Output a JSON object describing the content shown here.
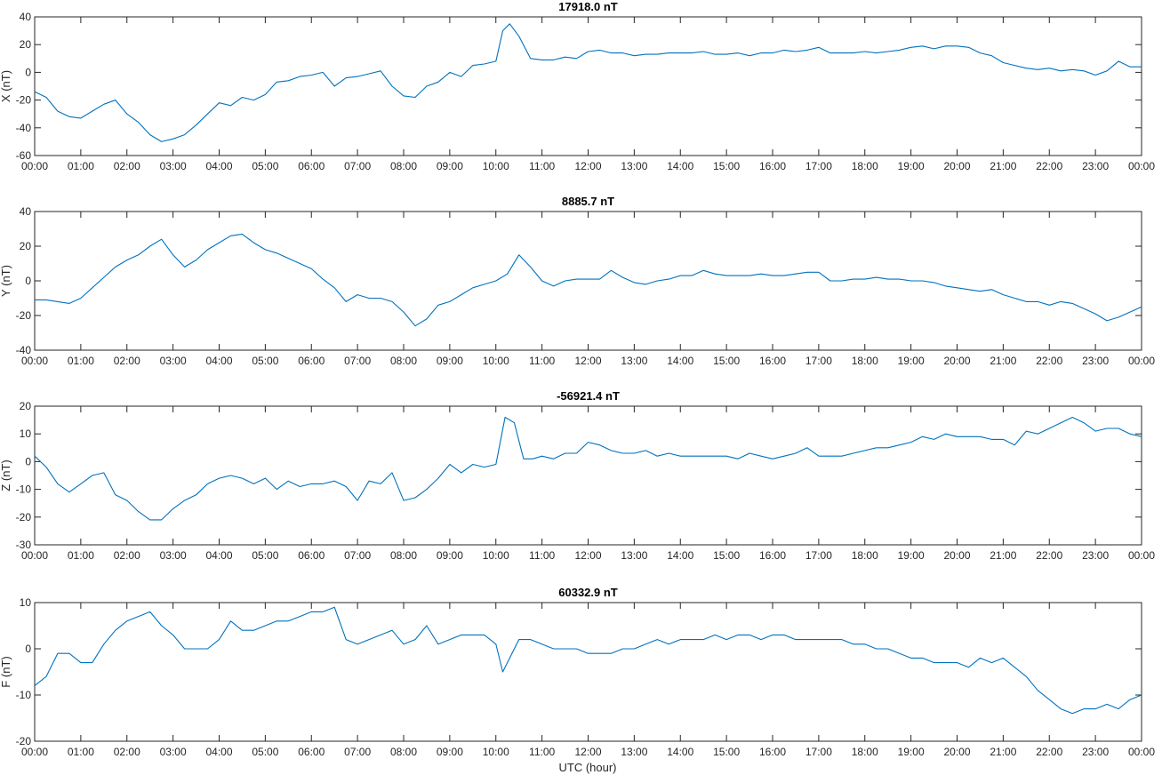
{
  "figure": {
    "xlabel": "UTC (hour)",
    "line_color": "#0072BD",
    "axis_color": "#262626"
  },
  "chart_data": [
    {
      "type": "line",
      "title": "17918.0 nT",
      "ylabel": "X (nT)",
      "xlabel": "",
      "xlim": [
        0,
        24
      ],
      "ylim": [
        -60,
        40
      ],
      "yticks": [
        -60,
        -40,
        -20,
        0,
        20,
        40
      ],
      "xticks": [
        "00:00",
        "01:00",
        "02:00",
        "03:00",
        "04:00",
        "05:00",
        "06:00",
        "07:00",
        "08:00",
        "09:00",
        "10:00",
        "11:00",
        "12:00",
        "13:00",
        "14:00",
        "15:00",
        "16:00",
        "17:00",
        "18:00",
        "19:00",
        "20:00",
        "21:00",
        "22:00",
        "23:00",
        "00:00"
      ],
      "grid": false,
      "series": [
        {
          "x": [
            0,
            0.25,
            0.5,
            0.75,
            1.0,
            1.25,
            1.5,
            1.75,
            2.0,
            2.25,
            2.5,
            2.75,
            3.0,
            3.25,
            3.5,
            3.75,
            4.0,
            4.25,
            4.5,
            4.75,
            5.0,
            5.25,
            5.5,
            5.75,
            6.0,
            6.25,
            6.5,
            6.75,
            7.0,
            7.25,
            7.5,
            7.75,
            8.0,
            8.25,
            8.5,
            8.75,
            9.0,
            9.25,
            9.5,
            9.75,
            10.0,
            10.15,
            10.3,
            10.5,
            10.75,
            11.0,
            11.25,
            11.5,
            11.75,
            12.0,
            12.25,
            12.5,
            12.75,
            13.0,
            13.25,
            13.5,
            13.75,
            14.0,
            14.25,
            14.5,
            14.75,
            15.0,
            15.25,
            15.5,
            15.75,
            16.0,
            16.25,
            16.5,
            16.75,
            17.0,
            17.25,
            17.5,
            17.75,
            18.0,
            18.25,
            18.5,
            18.75,
            19.0,
            19.25,
            19.5,
            19.75,
            20.0,
            20.25,
            20.5,
            20.75,
            21.0,
            21.25,
            21.5,
            21.75,
            22.0,
            22.25,
            22.5,
            22.75,
            23.0,
            23.25,
            23.5,
            23.75,
            24.0
          ],
          "y": [
            -14,
            -18,
            -28,
            -32,
            -33,
            -28,
            -23,
            -20,
            -30,
            -36,
            -45,
            -50,
            -48,
            -45,
            -38,
            -30,
            -22,
            -24,
            -18,
            -20,
            -16,
            -7,
            -6,
            -3,
            -2,
            0,
            -10,
            -4,
            -3,
            -1,
            1,
            -10,
            -17,
            -18,
            -10,
            -7,
            0,
            -3,
            5,
            6,
            8,
            30,
            35,
            26,
            10,
            9,
            9,
            11,
            10,
            15,
            16,
            14,
            14,
            12,
            13,
            13,
            14,
            14,
            14,
            15,
            13,
            13,
            14,
            12,
            14,
            14,
            16,
            15,
            16,
            18,
            14,
            14,
            14,
            15,
            14,
            15,
            16,
            18,
            19,
            17,
            19,
            19,
            18,
            14,
            12,
            7,
            5,
            3,
            2,
            3,
            1,
            2,
            1,
            -2,
            1,
            8,
            4,
            4
          ]
        }
      ]
    },
    {
      "type": "line",
      "title": "8885.7 nT",
      "ylabel": "Y (nT)",
      "xlabel": "",
      "xlim": [
        0,
        24
      ],
      "ylim": [
        -40,
        40
      ],
      "yticks": [
        -40,
        -20,
        0,
        20,
        40
      ],
      "xticks": [
        "00:00",
        "01:00",
        "02:00",
        "03:00",
        "04:00",
        "05:00",
        "06:00",
        "07:00",
        "08:00",
        "09:00",
        "10:00",
        "11:00",
        "12:00",
        "13:00",
        "14:00",
        "15:00",
        "16:00",
        "17:00",
        "18:00",
        "19:00",
        "20:00",
        "21:00",
        "22:00",
        "23:00",
        "00:00"
      ],
      "grid": false,
      "series": [
        {
          "x": [
            0,
            0.25,
            0.5,
            0.75,
            1.0,
            1.25,
            1.5,
            1.75,
            2.0,
            2.25,
            2.5,
            2.75,
            3.0,
            3.25,
            3.5,
            3.75,
            4.0,
            4.25,
            4.5,
            4.75,
            5.0,
            5.25,
            5.5,
            5.75,
            6.0,
            6.25,
            6.5,
            6.75,
            7.0,
            7.25,
            7.5,
            7.75,
            8.0,
            8.25,
            8.5,
            8.75,
            9.0,
            9.25,
            9.5,
            9.75,
            10.0,
            10.25,
            10.5,
            10.75,
            11.0,
            11.25,
            11.5,
            11.75,
            12.0,
            12.25,
            12.5,
            12.75,
            13.0,
            13.25,
            13.5,
            13.75,
            14.0,
            14.25,
            14.5,
            14.75,
            15.0,
            15.25,
            15.5,
            15.75,
            16.0,
            16.25,
            16.5,
            16.75,
            17.0,
            17.25,
            17.5,
            17.75,
            18.0,
            18.25,
            18.5,
            18.75,
            19.0,
            19.25,
            19.5,
            19.75,
            20.0,
            20.25,
            20.5,
            20.75,
            21.0,
            21.25,
            21.5,
            21.75,
            22.0,
            22.25,
            22.5,
            22.75,
            23.0,
            23.25,
            23.5,
            23.75,
            24.0
          ],
          "y": [
            -11,
            -11,
            -12,
            -13,
            -10,
            -4,
            2,
            8,
            12,
            15,
            20,
            24,
            15,
            8,
            12,
            18,
            22,
            26,
            27,
            22,
            18,
            16,
            13,
            10,
            7,
            1,
            -4,
            -12,
            -8,
            -10,
            -10,
            -12,
            -18,
            -26,
            -22,
            -14,
            -12,
            -8,
            -4,
            -2,
            0,
            4,
            15,
            8,
            0,
            -3,
            0,
            1,
            1,
            1,
            6,
            2,
            -1,
            -2,
            0,
            1,
            3,
            3,
            6,
            4,
            3,
            3,
            3,
            4,
            3,
            3,
            4,
            5,
            5,
            0,
            0,
            1,
            1,
            2,
            1,
            1,
            0,
            0,
            -1,
            -3,
            -4,
            -5,
            -6,
            -5,
            -8,
            -10,
            -12,
            -12,
            -14,
            -12,
            -13,
            -16,
            -19,
            -23,
            -21,
            -18,
            -15
          ]
        }
      ]
    },
    {
      "type": "line",
      "title": "-56921.4 nT",
      "ylabel": "Z (nT)",
      "xlabel": "",
      "xlim": [
        0,
        24
      ],
      "ylim": [
        -30,
        20
      ],
      "yticks": [
        -30,
        -20,
        -10,
        0,
        10,
        20
      ],
      "xticks": [
        "00:00",
        "01:00",
        "02:00",
        "03:00",
        "04:00",
        "05:00",
        "06:00",
        "07:00",
        "08:00",
        "09:00",
        "10:00",
        "11:00",
        "12:00",
        "13:00",
        "14:00",
        "15:00",
        "16:00",
        "17:00",
        "18:00",
        "19:00",
        "20:00",
        "21:00",
        "22:00",
        "23:00",
        "00:00"
      ],
      "grid": false,
      "series": [
        {
          "x": [
            0,
            0.25,
            0.5,
            0.75,
            1.0,
            1.25,
            1.5,
            1.75,
            2.0,
            2.25,
            2.5,
            2.75,
            3.0,
            3.25,
            3.5,
            3.75,
            4.0,
            4.25,
            4.5,
            4.75,
            5.0,
            5.25,
            5.5,
            5.75,
            6.0,
            6.25,
            6.5,
            6.75,
            7.0,
            7.25,
            7.5,
            7.75,
            8.0,
            8.25,
            8.5,
            8.75,
            9.0,
            9.25,
            9.5,
            9.75,
            10.0,
            10.2,
            10.4,
            10.6,
            10.8,
            11.0,
            11.25,
            11.5,
            11.75,
            12.0,
            12.25,
            12.5,
            12.75,
            13.0,
            13.25,
            13.5,
            13.75,
            14.0,
            14.25,
            14.5,
            14.75,
            15.0,
            15.25,
            15.5,
            15.75,
            16.0,
            16.25,
            16.5,
            16.75,
            17.0,
            17.25,
            17.5,
            17.75,
            18.0,
            18.25,
            18.5,
            18.75,
            19.0,
            19.25,
            19.5,
            19.75,
            20.0,
            20.25,
            20.5,
            20.75,
            21.0,
            21.25,
            21.5,
            21.75,
            22.0,
            22.25,
            22.5,
            22.75,
            23.0,
            23.25,
            23.5,
            23.75,
            24.0
          ],
          "y": [
            2,
            -2,
            -8,
            -11,
            -8,
            -5,
            -4,
            -12,
            -14,
            -18,
            -21,
            -21,
            -17,
            -14,
            -12,
            -8,
            -6,
            -5,
            -6,
            -8,
            -6,
            -10,
            -7,
            -9,
            -8,
            -8,
            -7,
            -9,
            -14,
            -7,
            -8,
            -4,
            -14,
            -13,
            -10,
            -6,
            -1,
            -4,
            -1,
            -2,
            -1,
            16,
            14,
            1,
            1,
            2,
            1,
            3,
            3,
            7,
            6,
            4,
            3,
            3,
            4,
            2,
            3,
            2,
            2,
            2,
            2,
            2,
            1,
            3,
            2,
            1,
            2,
            3,
            5,
            2,
            2,
            2,
            3,
            4,
            5,
            5,
            6,
            7,
            9,
            8,
            10,
            9,
            9,
            9,
            8,
            8,
            6,
            11,
            10,
            12,
            14,
            16,
            14,
            11,
            12,
            12,
            10,
            9
          ]
        }
      ]
    },
    {
      "type": "line",
      "title": "60332.9 nT",
      "ylabel": "F (nT)",
      "xlabel": "UTC (hour)",
      "xlim": [
        0,
        24
      ],
      "ylim": [
        -20,
        10
      ],
      "yticks": [
        -20,
        -10,
        0,
        10
      ],
      "xticks": [
        "00:00",
        "01:00",
        "02:00",
        "03:00",
        "04:00",
        "05:00",
        "06:00",
        "07:00",
        "08:00",
        "09:00",
        "10:00",
        "11:00",
        "12:00",
        "13:00",
        "14:00",
        "15:00",
        "16:00",
        "17:00",
        "18:00",
        "19:00",
        "20:00",
        "21:00",
        "22:00",
        "23:00",
        "00:00"
      ],
      "grid": false,
      "series": [
        {
          "x": [
            0,
            0.25,
            0.5,
            0.75,
            1.0,
            1.25,
            1.5,
            1.75,
            2.0,
            2.25,
            2.5,
            2.75,
            3.0,
            3.25,
            3.5,
            3.75,
            4.0,
            4.25,
            4.5,
            4.75,
            5.0,
            5.25,
            5.5,
            5.75,
            6.0,
            6.25,
            6.5,
            6.75,
            7.0,
            7.25,
            7.5,
            7.75,
            8.0,
            8.25,
            8.5,
            8.75,
            9.0,
            9.25,
            9.5,
            9.75,
            10.0,
            10.15,
            10.3,
            10.5,
            10.75,
            11.0,
            11.25,
            11.5,
            11.75,
            12.0,
            12.25,
            12.5,
            12.75,
            13.0,
            13.25,
            13.5,
            13.75,
            14.0,
            14.25,
            14.5,
            14.75,
            15.0,
            15.25,
            15.5,
            15.75,
            16.0,
            16.25,
            16.5,
            16.75,
            17.0,
            17.25,
            17.5,
            17.75,
            18.0,
            18.25,
            18.5,
            18.75,
            19.0,
            19.25,
            19.5,
            19.75,
            20.0,
            20.25,
            20.5,
            20.75,
            21.0,
            21.25,
            21.5,
            21.75,
            22.0,
            22.25,
            22.5,
            22.75,
            23.0,
            23.25,
            23.5,
            23.75,
            24.0
          ],
          "y": [
            -8,
            -6,
            -1,
            -1,
            -3,
            -3,
            1,
            4,
            6,
            7,
            8,
            5,
            3,
            0,
            0,
            0,
            2,
            6,
            4,
            4,
            5,
            6,
            6,
            7,
            8,
            8,
            9,
            2,
            1,
            2,
            3,
            4,
            1,
            2,
            5,
            1,
            2,
            3,
            3,
            3,
            1,
            -5,
            -2,
            2,
            2,
            1,
            0,
            0,
            0,
            -1,
            -1,
            -1,
            0,
            0,
            1,
            2,
            1,
            2,
            2,
            2,
            3,
            2,
            3,
            3,
            2,
            3,
            3,
            2,
            2,
            2,
            2,
            2,
            1,
            1,
            0,
            0,
            -1,
            -2,
            -2,
            -3,
            -3,
            -3,
            -4,
            -2,
            -3,
            -2,
            -4,
            -6,
            -9,
            -11,
            -13,
            -14,
            -13,
            -13,
            -12,
            -13,
            -11,
            -10
          ]
        }
      ]
    }
  ]
}
